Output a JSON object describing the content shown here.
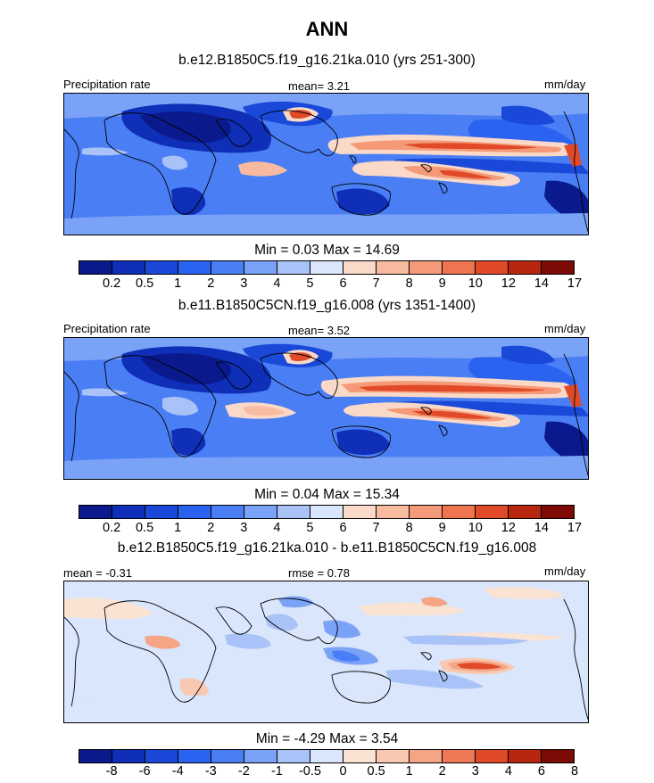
{
  "figure": {
    "title": "ANN"
  },
  "panels": [
    {
      "id": "top",
      "title": "b.e12.B1850C5.f19_g16.21ka.010 (yrs 251-300)",
      "left_label": "Precipitation rate",
      "center_label": "mean=   3.21",
      "right_label": "mm/day",
      "stats": "Min =   0.03 Max =  14.69",
      "colorbar_ticks": [
        "0.2",
        "0.5",
        "1",
        "2",
        "3",
        "4",
        "5",
        "6",
        "7",
        "8",
        "9",
        "10",
        "12",
        "14",
        "17"
      ],
      "palette": "precip"
    },
    {
      "id": "middle",
      "title": "b.e11.B1850C5CN.f19_g16.008 (yrs 1351-1400)",
      "left_label": "Precipitation rate",
      "center_label": "mean=   3.52",
      "right_label": "mm/day",
      "stats": "Min =   0.04 Max =  15.34",
      "colorbar_ticks": [
        "0.2",
        "0.5",
        "1",
        "2",
        "3",
        "4",
        "5",
        "6",
        "7",
        "8",
        "9",
        "10",
        "12",
        "14",
        "17"
      ],
      "palette": "precip"
    },
    {
      "id": "bottom",
      "title": "b.e12.B1850C5.f19_g16.21ka.010 - b.e11.B1850C5CN.f19_g16.008",
      "left_label": "mean =  -0.31",
      "center_label": "rmse =   0.78",
      "right_label": "mm/day",
      "stats": "Min =  -4.29 Max =   3.54",
      "colorbar_ticks": [
        "-8",
        "-6",
        "-4",
        "-3",
        "-2",
        "-1",
        "-0.5",
        "0",
        "0.5",
        "1",
        "2",
        "3",
        "4",
        "6",
        "8"
      ],
      "palette": "diff"
    }
  ],
  "palettes": {
    "precip": [
      "#0a1a8c",
      "#0f2fb8",
      "#1a49d9",
      "#2a63f0",
      "#4a7ef5",
      "#7aa2f7",
      "#a9c3f8",
      "#d9e6fb",
      "#fbd9c8",
      "#f9bba0",
      "#f59a78",
      "#ee7550",
      "#e04a28",
      "#b8260f",
      "#7e0a05"
    ],
    "diff": [
      "#0a1a8c",
      "#0f2fb8",
      "#1a49d9",
      "#2a63f0",
      "#4a7ef5",
      "#7aa2f7",
      "#a9c3f8",
      "#d9e6fb",
      "#fbe3d4",
      "#f9c8b0",
      "#f5a585",
      "#ee7a55",
      "#e04a28",
      "#b8260f",
      "#7e0a05"
    ]
  },
  "chart_data": [
    {
      "type": "heatmap",
      "title": "b.e12.B1850C5.f19_g16.21ka.010 (yrs 251-300)",
      "variable": "Precipitation rate",
      "units": "mm/day",
      "mean": 3.21,
      "min": 0.03,
      "max": 14.69,
      "contour_levels": [
        0.2,
        0.5,
        1,
        2,
        3,
        4,
        5,
        6,
        7,
        8,
        9,
        10,
        12,
        14,
        17
      ]
    },
    {
      "type": "heatmap",
      "title": "b.e11.B1850C5CN.f19_g16.008 (yrs 1351-1400)",
      "variable": "Precipitation rate",
      "units": "mm/day",
      "mean": 3.52,
      "min": 0.04,
      "max": 15.34,
      "contour_levels": [
        0.2,
        0.5,
        1,
        2,
        3,
        4,
        5,
        6,
        7,
        8,
        9,
        10,
        12,
        14,
        17
      ]
    },
    {
      "type": "heatmap",
      "title": "b.e12.B1850C5.f19_g16.21ka.010 - b.e11.B1850C5CN.f19_g16.008",
      "units": "mm/day",
      "mean": -0.31,
      "rmse": 0.78,
      "min": -4.29,
      "max": 3.54,
      "contour_levels": [
        -8,
        -6,
        -4,
        -3,
        -2,
        -1,
        -0.5,
        0,
        0.5,
        1,
        2,
        3,
        4,
        6,
        8
      ]
    }
  ]
}
